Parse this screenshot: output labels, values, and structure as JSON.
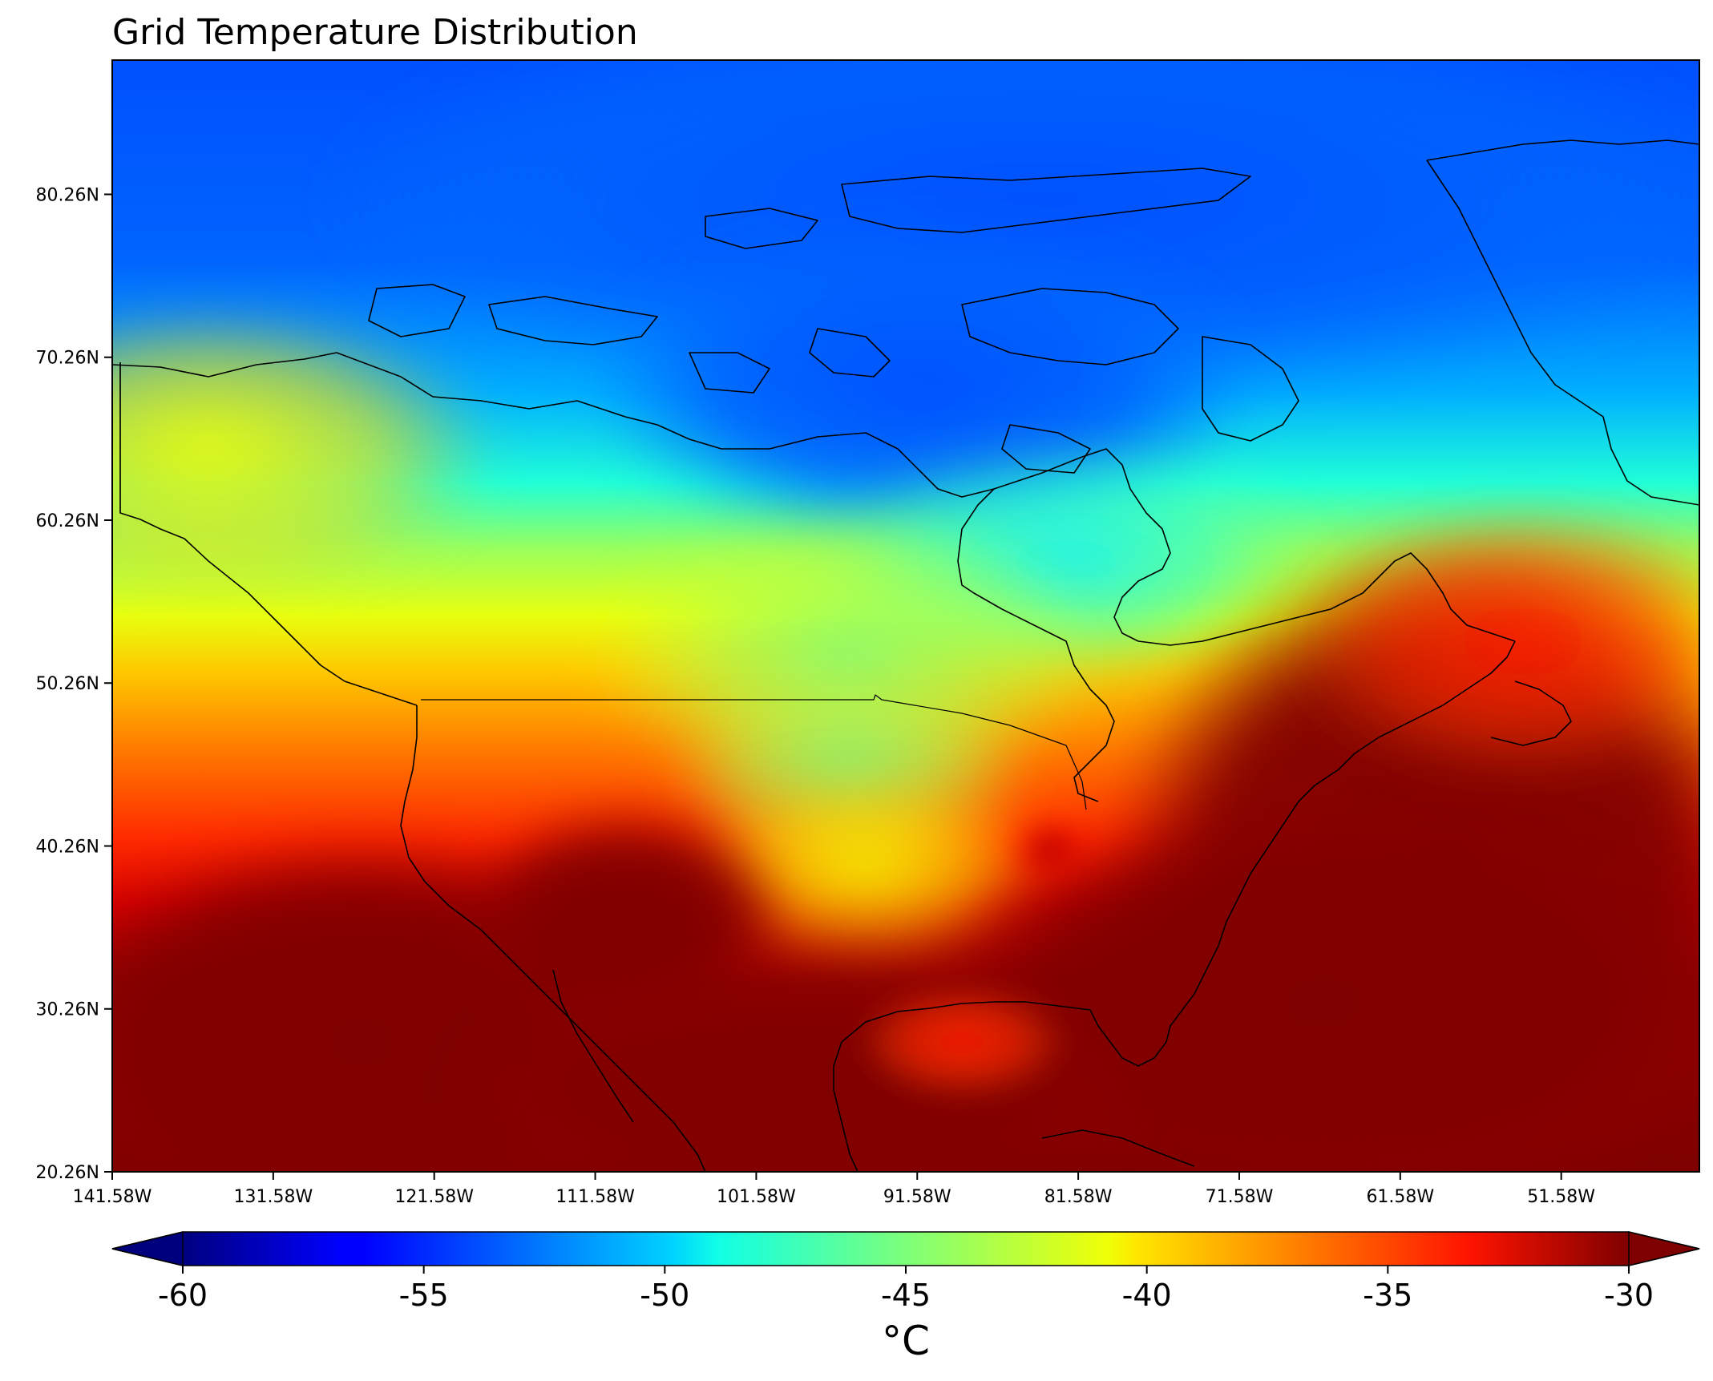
{
  "title": "Grid Temperature Distribution",
  "map": {
    "lon_range": [
      -141.58,
      -43.0
    ],
    "lat_range": [
      20.26,
      88.5
    ],
    "x_ticks": [
      "141.58W",
      "131.58W",
      "121.58W",
      "111.58W",
      "101.58W",
      "91.58W",
      "81.58W",
      "71.58W",
      "61.58W",
      "51.58W"
    ],
    "x_tick_values": [
      -141.58,
      -131.58,
      -121.58,
      -111.58,
      -101.58,
      -91.58,
      -81.58,
      -71.58,
      -61.58,
      -51.58
    ],
    "y_ticks": [
      "20.26N",
      "30.26N",
      "40.26N",
      "50.26N",
      "60.26N",
      "70.26N",
      "80.26N"
    ],
    "y_tick_values": [
      20.26,
      30.26,
      40.26,
      50.26,
      60.26,
      70.26,
      80.26
    ],
    "colormap": "jet",
    "field_description_values": {
      "north_min": -55,
      "southeast_max": -30
    }
  },
  "colorbar": {
    "label": "°C",
    "min": -60,
    "max": -30,
    "extend": "both",
    "ticks": [
      "-60",
      "-55",
      "-50",
      "-45",
      "-40",
      "-35",
      "-30"
    ],
    "tick_values": [
      -60,
      -55,
      -50,
      -45,
      -40,
      -35,
      -30
    ]
  }
}
